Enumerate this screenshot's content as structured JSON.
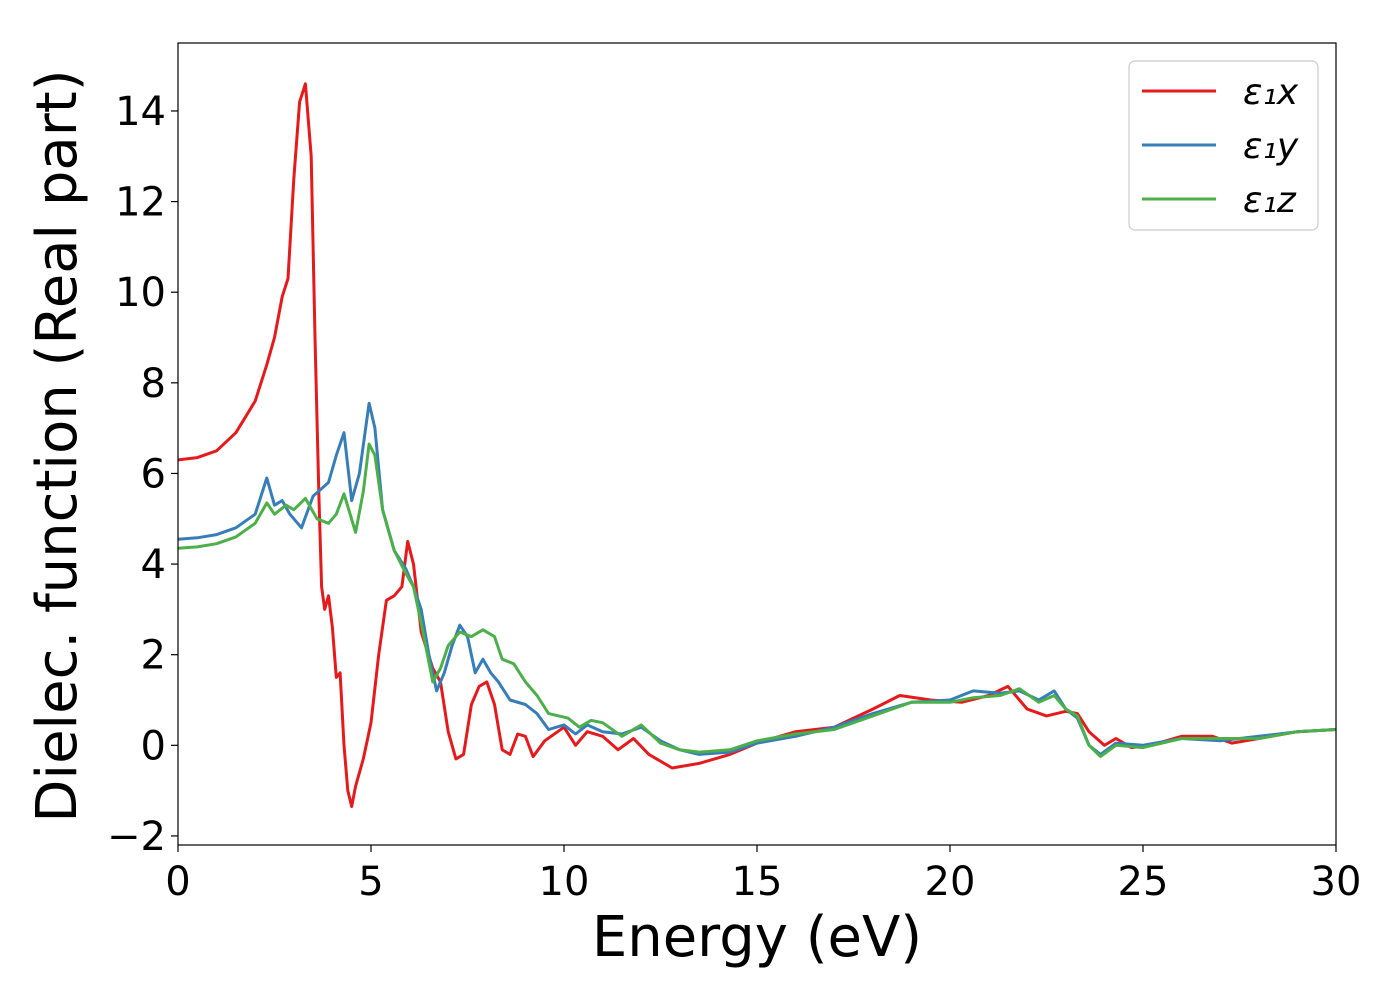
{
  "chart_data": {
    "type": "line",
    "xlabel": "Energy (eV)",
    "ylabel": "Dielec. function (Real part)",
    "xlim": [
      0,
      30
    ],
    "ylim": [
      -2.2,
      15.5
    ],
    "xticks": [
      0,
      5,
      10,
      15,
      20,
      25,
      30
    ],
    "yticks": [
      -2,
      0,
      2,
      4,
      6,
      8,
      10,
      12,
      14
    ],
    "xtick_labels": [
      "0",
      "5",
      "10",
      "15",
      "20",
      "25",
      "30"
    ],
    "ytick_labels": [
      "−2",
      "0",
      "2",
      "4",
      "6",
      "8",
      "10",
      "12",
      "14"
    ],
    "grid": false,
    "legend_position": "top-right",
    "series": [
      {
        "name": "ε₁x",
        "color": "#e41a1c",
        "points": [
          [
            0,
            6.3
          ],
          [
            0.5,
            6.35
          ],
          [
            1,
            6.5
          ],
          [
            1.5,
            6.9
          ],
          [
            2,
            7.6
          ],
          [
            2.3,
            8.4
          ],
          [
            2.5,
            9.0
          ],
          [
            2.7,
            9.9
          ],
          [
            2.85,
            10.3
          ],
          [
            3.0,
            12.5
          ],
          [
            3.15,
            14.2
          ],
          [
            3.3,
            14.6
          ],
          [
            3.45,
            13.0
          ],
          [
            3.55,
            9.0
          ],
          [
            3.65,
            5.5
          ],
          [
            3.72,
            3.5
          ],
          [
            3.8,
            3.0
          ],
          [
            3.9,
            3.3
          ],
          [
            4.0,
            2.6
          ],
          [
            4.1,
            1.5
          ],
          [
            4.2,
            1.6
          ],
          [
            4.3,
            0.0
          ],
          [
            4.4,
            -1.0
          ],
          [
            4.5,
            -1.35
          ],
          [
            4.6,
            -0.9
          ],
          [
            4.8,
            -0.3
          ],
          [
            5.0,
            0.5
          ],
          [
            5.2,
            2.0
          ],
          [
            5.4,
            3.2
          ],
          [
            5.6,
            3.3
          ],
          [
            5.8,
            3.5
          ],
          [
            5.95,
            4.5
          ],
          [
            6.1,
            4.0
          ],
          [
            6.3,
            2.5
          ],
          [
            6.6,
            1.7
          ],
          [
            6.8,
            1.4
          ],
          [
            7.0,
            0.3
          ],
          [
            7.2,
            -0.3
          ],
          [
            7.4,
            -0.2
          ],
          [
            7.6,
            0.9
          ],
          [
            7.8,
            1.3
          ],
          [
            8.0,
            1.4
          ],
          [
            8.2,
            0.9
          ],
          [
            8.4,
            -0.1
          ],
          [
            8.6,
            -0.2
          ],
          [
            8.8,
            0.25
          ],
          [
            9.0,
            0.2
          ],
          [
            9.2,
            -0.25
          ],
          [
            9.5,
            0.1
          ],
          [
            10.0,
            0.4
          ],
          [
            10.3,
            0.0
          ],
          [
            10.6,
            0.3
          ],
          [
            11.0,
            0.2
          ],
          [
            11.4,
            -0.1
          ],
          [
            11.8,
            0.15
          ],
          [
            12.2,
            -0.2
          ],
          [
            12.8,
            -0.5
          ],
          [
            13.5,
            -0.4
          ],
          [
            14.3,
            -0.2
          ],
          [
            15.0,
            0.05
          ],
          [
            16.0,
            0.3
          ],
          [
            17.0,
            0.4
          ],
          [
            18.0,
            0.8
          ],
          [
            18.7,
            1.1
          ],
          [
            19.5,
            1.0
          ],
          [
            20.3,
            0.95
          ],
          [
            21.0,
            1.1
          ],
          [
            21.5,
            1.3
          ],
          [
            22.0,
            0.8
          ],
          [
            22.5,
            0.65
          ],
          [
            23.0,
            0.75
          ],
          [
            23.3,
            0.7
          ],
          [
            23.6,
            0.3
          ],
          [
            24.0,
            0.0
          ],
          [
            24.3,
            0.15
          ],
          [
            24.7,
            -0.05
          ],
          [
            25.2,
            0.0
          ],
          [
            26.0,
            0.2
          ],
          [
            26.8,
            0.2
          ],
          [
            27.3,
            0.05
          ],
          [
            28.0,
            0.15
          ],
          [
            29.0,
            0.3
          ],
          [
            30.0,
            0.35
          ]
        ]
      },
      {
        "name": "ε₁y",
        "color": "#377eb8",
        "points": [
          [
            0,
            4.55
          ],
          [
            0.5,
            4.58
          ],
          [
            1,
            4.65
          ],
          [
            1.5,
            4.8
          ],
          [
            2.0,
            5.1
          ],
          [
            2.3,
            5.9
          ],
          [
            2.5,
            5.3
          ],
          [
            2.7,
            5.4
          ],
          [
            2.9,
            5.1
          ],
          [
            3.2,
            4.8
          ],
          [
            3.5,
            5.5
          ],
          [
            3.9,
            5.8
          ],
          [
            4.1,
            6.4
          ],
          [
            4.3,
            6.9
          ],
          [
            4.5,
            5.4
          ],
          [
            4.7,
            6.0
          ],
          [
            4.95,
            7.55
          ],
          [
            5.1,
            7.0
          ],
          [
            5.3,
            5.2
          ],
          [
            5.6,
            4.3
          ],
          [
            5.9,
            3.9
          ],
          [
            6.1,
            3.5
          ],
          [
            6.3,
            3.0
          ],
          [
            6.5,
            2.0
          ],
          [
            6.7,
            1.2
          ],
          [
            6.9,
            1.6
          ],
          [
            7.1,
            2.2
          ],
          [
            7.3,
            2.65
          ],
          [
            7.5,
            2.4
          ],
          [
            7.7,
            1.6
          ],
          [
            7.9,
            1.9
          ],
          [
            8.1,
            1.6
          ],
          [
            8.3,
            1.4
          ],
          [
            8.6,
            1.0
          ],
          [
            9.0,
            0.9
          ],
          [
            9.3,
            0.7
          ],
          [
            9.6,
            0.35
          ],
          [
            10.0,
            0.45
          ],
          [
            10.3,
            0.25
          ],
          [
            10.6,
            0.45
          ],
          [
            11.0,
            0.3
          ],
          [
            11.5,
            0.25
          ],
          [
            12.0,
            0.4
          ],
          [
            12.5,
            0.1
          ],
          [
            13.0,
            -0.1
          ],
          [
            13.5,
            -0.2
          ],
          [
            14.3,
            -0.15
          ],
          [
            15.0,
            0.05
          ],
          [
            16.0,
            0.2
          ],
          [
            17.0,
            0.4
          ],
          [
            18.0,
            0.7
          ],
          [
            19.0,
            0.95
          ],
          [
            20.0,
            1.0
          ],
          [
            20.6,
            1.2
          ],
          [
            21.3,
            1.15
          ],
          [
            21.8,
            1.2
          ],
          [
            22.3,
            1.0
          ],
          [
            22.7,
            1.2
          ],
          [
            23.0,
            0.8
          ],
          [
            23.3,
            0.6
          ],
          [
            23.6,
            0.0
          ],
          [
            23.9,
            -0.2
          ],
          [
            24.3,
            0.05
          ],
          [
            25.0,
            0.0
          ],
          [
            26.0,
            0.15
          ],
          [
            27.0,
            0.1
          ],
          [
            28.0,
            0.2
          ],
          [
            29.0,
            0.3
          ],
          [
            30.0,
            0.35
          ]
        ]
      },
      {
        "name": "ε₁z",
        "color": "#4daf4a",
        "points": [
          [
            0,
            4.35
          ],
          [
            0.5,
            4.38
          ],
          [
            1,
            4.45
          ],
          [
            1.5,
            4.6
          ],
          [
            2.0,
            4.9
          ],
          [
            2.3,
            5.35
          ],
          [
            2.5,
            5.1
          ],
          [
            2.8,
            5.3
          ],
          [
            3.0,
            5.2
          ],
          [
            3.3,
            5.45
          ],
          [
            3.6,
            5.0
          ],
          [
            3.9,
            4.9
          ],
          [
            4.1,
            5.1
          ],
          [
            4.3,
            5.55
          ],
          [
            4.6,
            4.7
          ],
          [
            4.8,
            5.6
          ],
          [
            4.95,
            6.65
          ],
          [
            5.1,
            6.4
          ],
          [
            5.3,
            5.2
          ],
          [
            5.6,
            4.3
          ],
          [
            5.9,
            3.8
          ],
          [
            6.1,
            3.5
          ],
          [
            6.3,
            2.7
          ],
          [
            6.6,
            1.4
          ],
          [
            6.8,
            1.7
          ],
          [
            7.0,
            2.2
          ],
          [
            7.3,
            2.5
          ],
          [
            7.6,
            2.4
          ],
          [
            7.9,
            2.55
          ],
          [
            8.2,
            2.4
          ],
          [
            8.4,
            1.9
          ],
          [
            8.7,
            1.8
          ],
          [
            9.0,
            1.4
          ],
          [
            9.3,
            1.1
          ],
          [
            9.6,
            0.7
          ],
          [
            10.1,
            0.6
          ],
          [
            10.4,
            0.4
          ],
          [
            10.7,
            0.55
          ],
          [
            11.0,
            0.5
          ],
          [
            11.5,
            0.2
          ],
          [
            12.0,
            0.45
          ],
          [
            12.5,
            0.05
          ],
          [
            13.0,
            -0.1
          ],
          [
            13.5,
            -0.15
          ],
          [
            14.3,
            -0.1
          ],
          [
            15.0,
            0.1
          ],
          [
            16.0,
            0.25
          ],
          [
            17.0,
            0.35
          ],
          [
            18.0,
            0.65
          ],
          [
            19.0,
            0.95
          ],
          [
            20.0,
            0.95
          ],
          [
            20.6,
            1.05
          ],
          [
            21.3,
            1.1
          ],
          [
            21.8,
            1.25
          ],
          [
            22.3,
            0.95
          ],
          [
            22.7,
            1.1
          ],
          [
            23.0,
            0.8
          ],
          [
            23.3,
            0.65
          ],
          [
            23.6,
            0.0
          ],
          [
            23.9,
            -0.25
          ],
          [
            24.3,
            0.0
          ],
          [
            25.0,
            -0.05
          ],
          [
            26.0,
            0.15
          ],
          [
            27.0,
            0.15
          ],
          [
            28.0,
            0.15
          ],
          [
            29.0,
            0.3
          ],
          [
            30.0,
            0.35
          ]
        ]
      }
    ]
  }
}
